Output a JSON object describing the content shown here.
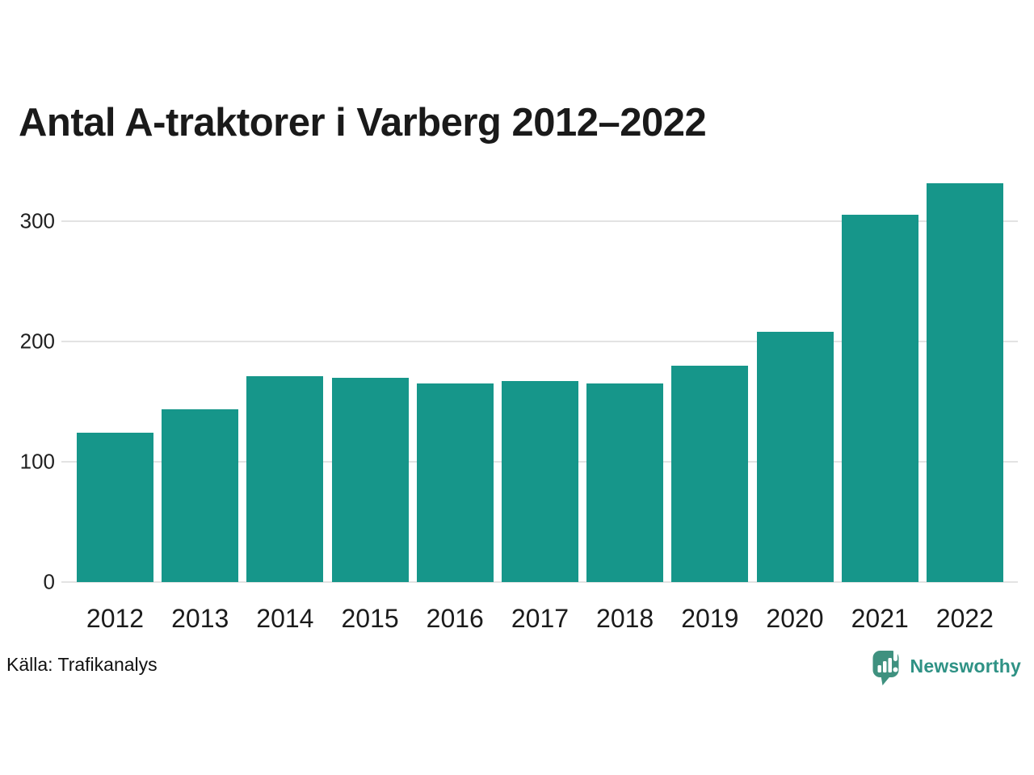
{
  "title": "Antal A-traktorer i Varberg 2012–2022",
  "source": "Källa: Trafikanalys",
  "brand": {
    "name": "Newsworthy"
  },
  "colors": {
    "bar": "#16968a",
    "grid": "#e3e3e3",
    "title_text": "#1a1a1a",
    "axis_text": "#1f1f1f",
    "logo_bubble": "#3f917f",
    "logo_text": "#2f9285",
    "background": "#ffffff"
  },
  "chart_data": {
    "type": "bar",
    "title": "Antal A-traktorer i Varberg 2012–2022",
    "categories": [
      "2012",
      "2013",
      "2014",
      "2015",
      "2016",
      "2017",
      "2018",
      "2019",
      "2020",
      "2021",
      "2022"
    ],
    "values": [
      124,
      144,
      171,
      170,
      165,
      167,
      165,
      180,
      208,
      306,
      332
    ],
    "xlabel": "",
    "ylabel": "",
    "yticks": [
      0,
      100,
      200,
      300
    ],
    "ylim": [
      0,
      350
    ],
    "grid": "horizontal",
    "legend": "none",
    "bar_color": "#16968a",
    "source": "Källa: Trafikanalys"
  }
}
